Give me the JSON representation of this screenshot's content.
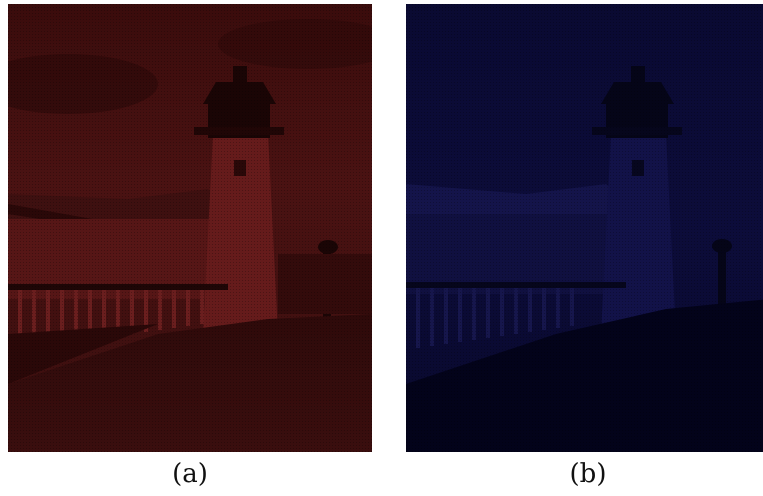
{
  "figure": {
    "panels": [
      {
        "caption": "(a)",
        "tint": "red",
        "base_color": "#3a0d0d",
        "dark_color": "#1a0505",
        "light_color": "#5a1818"
      },
      {
        "caption": "(b)",
        "tint": "blue",
        "base_color": "#0a0a3a",
        "dark_color": "#03031a",
        "light_color": "#14145a"
      }
    ]
  }
}
